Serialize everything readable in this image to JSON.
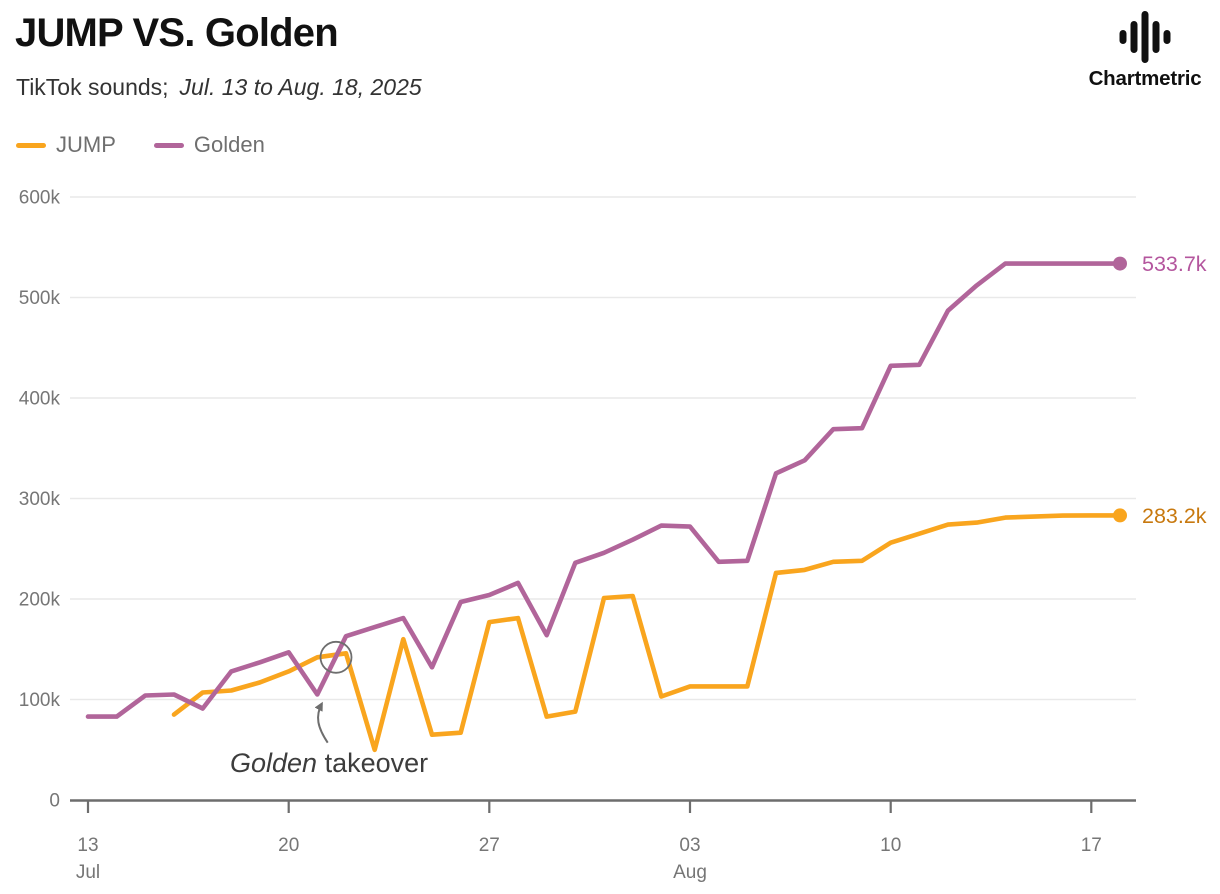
{
  "header": {
    "title": "JUMP VS. Golden",
    "subtitle_prefix": "TikTok sounds;",
    "subtitle_dates": "Jul. 13 to Aug. 18, 2025",
    "brand": "Chartmetric"
  },
  "legend": {
    "items": [
      {
        "id": "jump",
        "label": "JUMP",
        "color": "#f9a51e"
      },
      {
        "id": "golden",
        "label": "Golden",
        "color": "#b1659a"
      }
    ]
  },
  "chart_data": {
    "type": "line",
    "title": "JUMP VS. Golden",
    "subtitle": "TikTok sounds; Jul. 13 to Aug. 18, 2025",
    "x_axis": {
      "start_date": "2025-07-13",
      "end_date": "2025-08-18",
      "tick_labels": [
        "13",
        "20",
        "27",
        "03",
        "10",
        "17"
      ],
      "tick_days": [
        0,
        7,
        14,
        21,
        28,
        35
      ],
      "month_labels": [
        {
          "label": "Jul",
          "day": 0
        },
        {
          "label": "Aug",
          "day": 21
        }
      ]
    },
    "y_axis": {
      "min": 0,
      "max": 600000,
      "step": 100000,
      "tick_labels": [
        "0",
        "100k",
        "200k",
        "300k",
        "400k",
        "500k",
        "600k"
      ],
      "grid": true
    },
    "series": [
      {
        "name": "JUMP",
        "color": "#f9a51e",
        "label_color": "#c8790f",
        "start_day": 3,
        "end_value_label": "283.2k",
        "values_k": [
          85,
          107,
          109,
          117,
          128,
          142,
          146,
          50,
          160,
          65,
          67,
          177,
          181,
          83,
          88,
          201,
          203,
          103,
          113,
          113,
          113,
          226,
          229,
          237,
          238,
          256,
          265,
          274,
          276,
          281,
          282,
          283,
          283.2,
          283.2
        ]
      },
      {
        "name": "Golden",
        "color": "#b1659a",
        "label_color": "#b4569e",
        "start_day": 0,
        "end_value_label": "533.7k",
        "values_k": [
          83,
          83,
          104,
          105,
          91,
          128,
          137,
          147,
          105,
          163,
          172,
          181,
          132,
          197,
          204,
          216,
          164,
          236,
          246,
          259,
          273,
          272,
          237,
          238,
          325,
          338,
          369,
          370,
          432,
          433,
          487,
          512,
          533.7,
          533.7,
          533.7,
          533.7,
          533.7
        ]
      }
    ],
    "annotation": {
      "label_italic": "Golden",
      "label_rest": " takeover",
      "label_anchor": {
        "day": 4.95,
        "value_k": 36
      },
      "circle": {
        "day": 8.65,
        "value_k": 142,
        "radius": 15.5
      },
      "arrow": {
        "from": {
          "day": 8.36,
          "value_k": 57
        },
        "to": {
          "day": 8.16,
          "value_k": 100
        }
      }
    }
  }
}
